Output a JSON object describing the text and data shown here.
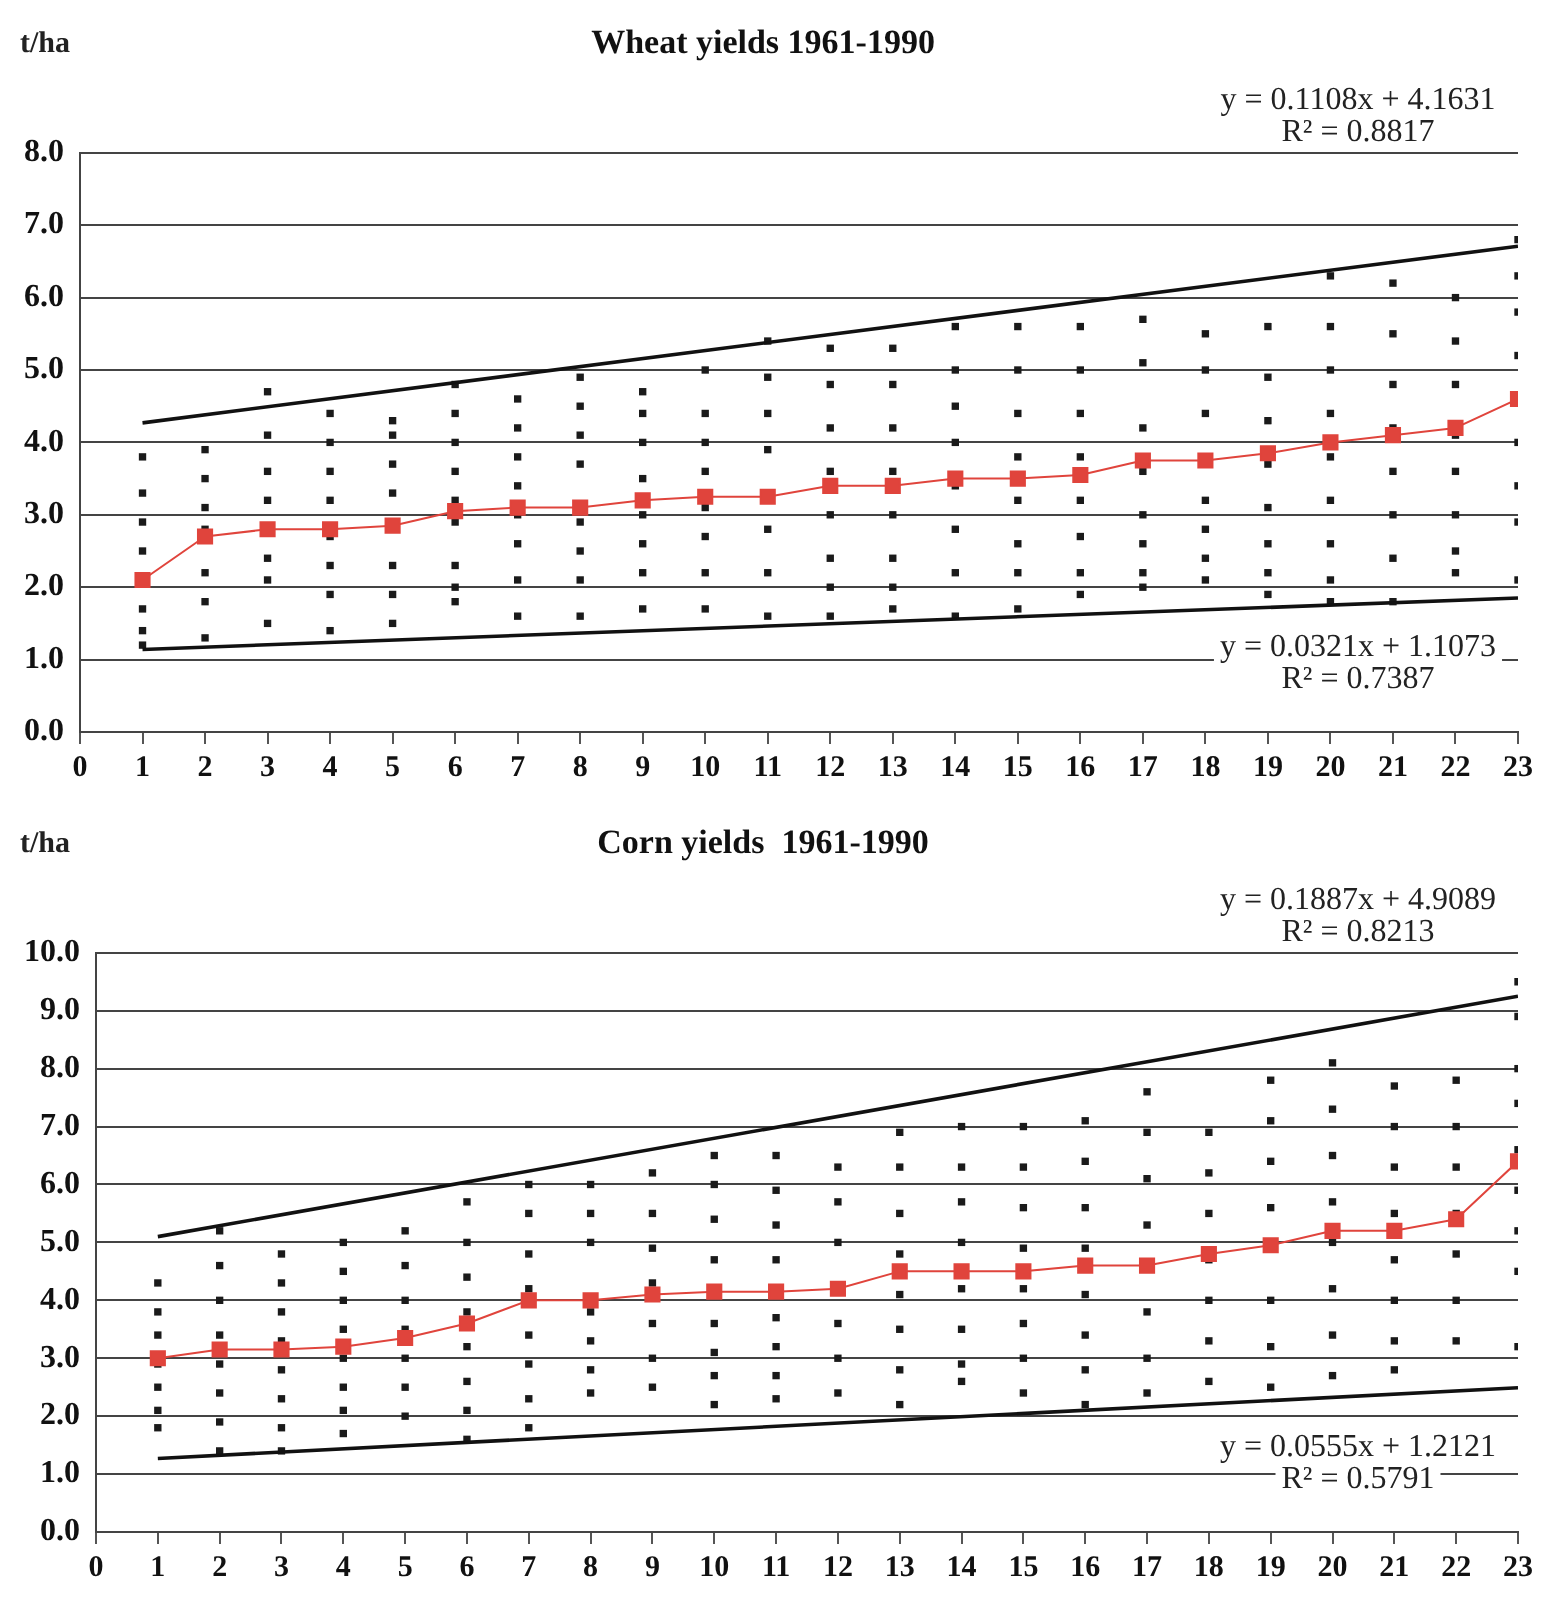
{
  "chart_data": [
    {
      "type": "scatter",
      "title": "Wheat yields 1961-1990",
      "ylabel": "t/ha",
      "xlim": [
        0,
        23
      ],
      "xticks": [
        0,
        1,
        2,
        3,
        4,
        5,
        6,
        7,
        8,
        9,
        10,
        11,
        12,
        13,
        14,
        15,
        16,
        17,
        18,
        19,
        20,
        21,
        22,
        23
      ],
      "ylim": [
        0,
        8
      ],
      "yticks": [
        {
          "value": 0,
          "label": "0.0"
        },
        {
          "value": 1,
          "label": "1.0"
        },
        {
          "value": 2,
          "label": "2.0"
        },
        {
          "value": 3,
          "label": "3.0"
        },
        {
          "value": 4,
          "label": "4.0"
        },
        {
          "value": 5,
          "label": "5.0"
        },
        {
          "value": 6,
          "label": "6.0"
        },
        {
          "value": 7,
          "label": "7.0"
        },
        {
          "value": 8,
          "label": "8.0"
        }
      ],
      "grid": "y",
      "legend": false,
      "marker": "square",
      "annotations": [
        "y = 0.1108x + 4.1631",
        "R² = 0.8817",
        "y = 0.0321x + 1.1073",
        "R² = 0.7387"
      ],
      "series": [
        {
          "type": "scatter",
          "color": "#1a1a1a",
          "x": [
            1,
            1,
            1,
            1,
            1,
            1,
            1,
            2,
            2,
            2,
            2,
            2,
            2,
            2,
            3,
            3,
            3,
            3,
            3,
            3,
            3,
            4,
            4,
            4,
            4,
            4,
            4,
            4,
            4,
            5,
            5,
            5,
            5,
            5,
            5,
            5,
            6,
            6,
            6,
            6,
            6,
            6,
            6,
            6,
            6,
            7,
            7,
            7,
            7,
            7,
            7,
            7,
            7,
            8,
            8,
            8,
            8,
            8,
            8,
            8,
            8,
            9,
            9,
            9,
            9,
            9,
            9,
            9,
            9,
            10,
            10,
            10,
            10,
            10,
            10,
            10,
            10,
            11,
            11,
            11,
            11,
            11,
            11,
            11,
            12,
            12,
            12,
            12,
            12,
            12,
            12,
            12,
            13,
            13,
            13,
            13,
            13,
            13,
            13,
            13,
            14,
            14,
            14,
            14,
            14,
            14,
            14,
            14,
            15,
            15,
            15,
            15,
            15,
            15,
            15,
            15,
            16,
            16,
            16,
            16,
            16,
            16,
            16,
            16,
            17,
            17,
            17,
            17,
            17,
            17,
            17,
            17,
            18,
            18,
            18,
            18,
            18,
            18,
            18,
            19,
            19,
            19,
            19,
            19,
            19,
            19,
            19,
            20,
            20,
            20,
            20,
            20,
            20,
            20,
            20,
            20,
            21,
            21,
            21,
            21,
            21,
            21,
            21,
            21,
            22,
            22,
            22,
            22,
            22,
            22,
            22,
            22,
            23,
            23,
            23,
            23,
            23,
            23,
            23,
            23
          ],
          "values": [
            3.8,
            3.3,
            2.9,
            2.5,
            1.7,
            1.4,
            1.2,
            3.9,
            3.5,
            3.1,
            2.8,
            2.2,
            1.8,
            1.3,
            4.7,
            4.1,
            3.6,
            3.2,
            2.4,
            2.1,
            1.5,
            4.4,
            4.0,
            3.6,
            3.2,
            2.7,
            2.3,
            1.9,
            1.4,
            4.3,
            4.1,
            3.7,
            3.3,
            2.3,
            1.9,
            1.5,
            4.8,
            4.4,
            4.0,
            3.6,
            3.2,
            2.9,
            2.3,
            2.0,
            1.8,
            4.6,
            4.2,
            3.8,
            3.4,
            3.0,
            2.6,
            2.1,
            1.6,
            4.9,
            4.5,
            4.1,
            3.7,
            2.9,
            2.5,
            2.1,
            1.6,
            4.7,
            4.4,
            4.0,
            3.5,
            3.0,
            2.6,
            2.2,
            1.7,
            5.0,
            4.4,
            4.0,
            3.6,
            3.1,
            2.7,
            2.2,
            1.7,
            5.4,
            4.9,
            4.4,
            3.9,
            2.8,
            2.2,
            1.6,
            5.3,
            4.8,
            4.2,
            3.6,
            3.0,
            2.4,
            2.0,
            1.6,
            5.3,
            4.8,
            4.2,
            3.6,
            3.0,
            2.4,
            2.0,
            1.7,
            5.6,
            5.0,
            4.5,
            4.0,
            3.4,
            2.8,
            2.2,
            1.6,
            5.6,
            5.0,
            4.4,
            3.8,
            3.2,
            2.6,
            2.2,
            1.7,
            5.6,
            5.0,
            4.4,
            3.8,
            3.2,
            2.7,
            2.2,
            1.9,
            5.7,
            5.1,
            4.2,
            3.6,
            3.0,
            2.6,
            2.2,
            2.0,
            5.5,
            5.0,
            4.4,
            3.2,
            2.8,
            2.4,
            2.1,
            5.6,
            4.9,
            4.3,
            3.7,
            3.1,
            2.6,
            2.2,
            1.9,
            6.3,
            5.6,
            5.0,
            4.4,
            3.8,
            3.2,
            2.6,
            2.1,
            1.8,
            6.2,
            5.5,
            4.8,
            4.2,
            3.6,
            3.0,
            2.4,
            1.8,
            6.0,
            5.4,
            4.8,
            4.1,
            3.6,
            3.0,
            2.5,
            2.2,
            6.8,
            6.3,
            5.8,
            5.2,
            4.0,
            3.4,
            2.9,
            2.1
          ]
        },
        {
          "type": "line",
          "color": "#e0443c",
          "x": [
            1,
            2,
            3,
            4,
            5,
            6,
            7,
            8,
            9,
            10,
            11,
            12,
            13,
            14,
            15,
            16,
            17,
            18,
            19,
            20,
            21,
            22,
            23
          ],
          "values": [
            2.1,
            2.7,
            2.8,
            2.8,
            2.85,
            3.05,
            3.1,
            3.1,
            3.2,
            3.25,
            3.25,
            3.4,
            3.4,
            3.5,
            3.5,
            3.55,
            3.75,
            3.75,
            3.85,
            4.0,
            4.1,
            4.2,
            4.6
          ]
        },
        {
          "type": "line",
          "color": "#111111",
          "marker": "none",
          "x": [
            1,
            23
          ],
          "values": [
            4.27,
            6.71
          ]
        },
        {
          "type": "line",
          "color": "#111111",
          "marker": "none",
          "x": [
            1,
            23
          ],
          "values": [
            1.14,
            1.85
          ]
        }
      ]
    },
    {
      "type": "scatter",
      "title": "Corn yields  1961-1990",
      "ylabel": "t/ha",
      "xlim": [
        0,
        23
      ],
      "xticks": [
        0,
        1,
        2,
        3,
        4,
        5,
        6,
        7,
        8,
        9,
        10,
        11,
        12,
        13,
        14,
        15,
        16,
        17,
        18,
        19,
        20,
        21,
        22,
        23
      ],
      "ylim": [
        0,
        10
      ],
      "yticks": [
        {
          "value": 0,
          "label": "0.0"
        },
        {
          "value": 1,
          "label": "1.0"
        },
        {
          "value": 2,
          "label": "2.0"
        },
        {
          "value": 3,
          "label": "3.0"
        },
        {
          "value": 4,
          "label": "4.0"
        },
        {
          "value": 5,
          "label": "5.0"
        },
        {
          "value": 6,
          "label": "6.0"
        },
        {
          "value": 7,
          "label": "7.0"
        },
        {
          "value": 8,
          "label": "8.0"
        },
        {
          "value": 9,
          "label": "9.0"
        },
        {
          "value": 10,
          "label": "10.0"
        }
      ],
      "grid": "y",
      "legend": false,
      "marker": "square",
      "annotations": [
        "y = 0.1887x + 4.9089",
        "R² = 0.8213",
        "y = 0.0555x + 1.2121",
        "R² = 0.5791"
      ],
      "series": [
        {
          "type": "scatter",
          "color": "#1a1a1a",
          "x": [
            1,
            1,
            1,
            1,
            1,
            1,
            1,
            2,
            2,
            2,
            2,
            2,
            2,
            2,
            2,
            3,
            3,
            3,
            3,
            3,
            3,
            3,
            3,
            4,
            4,
            4,
            4,
            4,
            4,
            4,
            4,
            5,
            5,
            5,
            5,
            5,
            5,
            5,
            6,
            6,
            6,
            6,
            6,
            6,
            6,
            6,
            7,
            7,
            7,
            7,
            7,
            7,
            7,
            7,
            8,
            8,
            8,
            8,
            8,
            8,
            8,
            9,
            9,
            9,
            9,
            9,
            9,
            9,
            10,
            10,
            10,
            10,
            10,
            10,
            10,
            10,
            11,
            11,
            11,
            11,
            11,
            11,
            11,
            11,
            12,
            12,
            12,
            12,
            12,
            12,
            13,
            13,
            13,
            13,
            13,
            13,
            13,
            13,
            14,
            14,
            14,
            14,
            14,
            14,
            14,
            14,
            15,
            15,
            15,
            15,
            15,
            15,
            15,
            15,
            16,
            16,
            16,
            16,
            16,
            16,
            16,
            16,
            17,
            17,
            17,
            17,
            17,
            17,
            17,
            18,
            18,
            18,
            18,
            18,
            18,
            18,
            19,
            19,
            19,
            19,
            19,
            19,
            19,
            20,
            20,
            20,
            20,
            20,
            20,
            20,
            20,
            21,
            21,
            21,
            21,
            21,
            21,
            21,
            21,
            22,
            22,
            22,
            22,
            22,
            22,
            22,
            23,
            23,
            23,
            23,
            23,
            23,
            23,
            23,
            23
          ],
          "values": [
            4.3,
            3.8,
            3.4,
            2.9,
            2.5,
            2.1,
            1.8,
            5.2,
            4.6,
            4.0,
            3.4,
            2.9,
            2.4,
            1.9,
            1.4,
            4.8,
            4.3,
            3.8,
            3.3,
            2.8,
            2.3,
            1.8,
            1.4,
            5.0,
            4.5,
            4.0,
            3.5,
            3.0,
            2.5,
            2.1,
            1.7,
            5.2,
            4.6,
            4.0,
            3.5,
            3.0,
            2.5,
            2.0,
            5.7,
            5.0,
            4.4,
            3.8,
            3.2,
            2.6,
            2.1,
            1.6,
            6.0,
            5.5,
            4.8,
            4.2,
            3.4,
            2.9,
            2.3,
            1.8,
            6.0,
            5.5,
            5.0,
            3.8,
            3.3,
            2.8,
            2.4,
            6.2,
            5.5,
            4.9,
            4.3,
            3.6,
            3.0,
            2.5,
            6.5,
            6.0,
            5.4,
            4.7,
            3.6,
            3.1,
            2.7,
            2.2,
            6.5,
            5.9,
            5.3,
            4.7,
            3.7,
            3.2,
            2.7,
            2.3,
            6.3,
            5.7,
            5.0,
            3.6,
            3.0,
            2.4,
            6.9,
            6.3,
            5.5,
            4.8,
            4.1,
            3.5,
            2.8,
            2.2,
            7.0,
            6.3,
            5.7,
            5.0,
            4.2,
            3.5,
            2.9,
            2.6,
            7.0,
            6.3,
            5.6,
            4.9,
            4.2,
            3.6,
            3.0,
            2.4,
            7.1,
            6.4,
            5.6,
            4.9,
            4.1,
            3.4,
            2.8,
            2.2,
            7.6,
            6.9,
            6.1,
            5.3,
            3.8,
            3.0,
            2.4,
            6.9,
            6.2,
            5.5,
            4.7,
            4.0,
            3.3,
            2.6,
            7.8,
            7.1,
            6.4,
            5.6,
            4.0,
            3.2,
            2.5,
            8.1,
            7.3,
            6.5,
            5.7,
            5.0,
            4.2,
            3.4,
            2.7,
            7.7,
            7.0,
            6.3,
            5.5,
            4.7,
            4.0,
            3.3,
            2.8,
            7.8,
            7.0,
            6.3,
            5.5,
            4.8,
            4.0,
            3.3,
            9.5,
            8.9,
            8.0,
            7.4,
            6.6,
            5.9,
            5.2,
            4.5,
            3.2
          ]
        },
        {
          "type": "line",
          "color": "#e0443c",
          "x": [
            1,
            2,
            3,
            4,
            5,
            6,
            7,
            8,
            9,
            10,
            11,
            12,
            13,
            14,
            15,
            16,
            17,
            18,
            19,
            20,
            21,
            22,
            23
          ],
          "values": [
            3.0,
            3.15,
            3.15,
            3.2,
            3.35,
            3.6,
            4.0,
            4.0,
            4.1,
            4.15,
            4.15,
            4.2,
            4.5,
            4.5,
            4.5,
            4.6,
            4.6,
            4.8,
            4.95,
            5.2,
            5.2,
            5.4,
            6.4
          ]
        },
        {
          "type": "line",
          "color": "#111111",
          "marker": "none",
          "x": [
            1,
            23
          ],
          "values": [
            5.1,
            9.25
          ]
        },
        {
          "type": "line",
          "color": "#111111",
          "marker": "none",
          "x": [
            1,
            23
          ],
          "values": [
            1.27,
            2.49
          ]
        }
      ]
    }
  ]
}
